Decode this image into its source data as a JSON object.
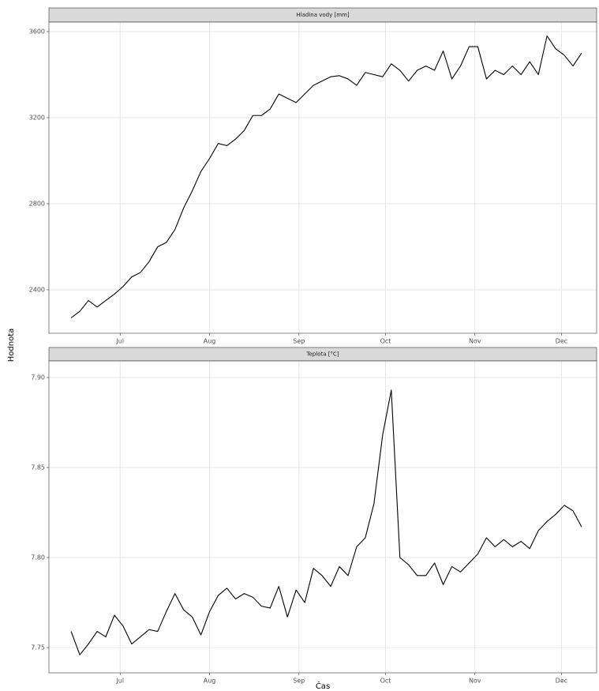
{
  "axis_titles": {
    "x": "Čas",
    "y": "Hodnota"
  },
  "chart_data": [
    {
      "type": "line",
      "title": "Hladina vody [mm]",
      "color": "#000000",
      "grid": true,
      "x": [
        165,
        168,
        171,
        174,
        177,
        180,
        183,
        186,
        189,
        192,
        195,
        198,
        201,
        204,
        207,
        210,
        213,
        216,
        219,
        222,
        225,
        228,
        231,
        234,
        237,
        240,
        243,
        246,
        249,
        252,
        255,
        258,
        261,
        264,
        267,
        270,
        273,
        276,
        279,
        282,
        285,
        288,
        291,
        294,
        297,
        300,
        303,
        306,
        309,
        312,
        315,
        318,
        321,
        324,
        327,
        330,
        333,
        336,
        339,
        342
      ],
      "values": [
        2270,
        2300,
        2350,
        2320,
        2350,
        2380,
        2415,
        2460,
        2480,
        2530,
        2600,
        2620,
        2680,
        2780,
        2860,
        2950,
        3010,
        3080,
        3070,
        3100,
        3140,
        3210,
        3210,
        3240,
        3310,
        3290,
        3270,
        3310,
        3350,
        3370,
        3390,
        3395,
        3380,
        3350,
        3410,
        3400,
        3390,
        3450,
        3420,
        3370,
        3420,
        3440,
        3420,
        3510,
        3380,
        3440,
        3530,
        3530,
        3380,
        3420,
        3400,
        3440,
        3400,
        3460,
        3400,
        3580,
        3520,
        3490,
        3440,
        3500
      ],
      "xlim": [
        157.3,
        347.2
      ],
      "xticks": [
        {
          "value": 182,
          "label": "Jul"
        },
        {
          "value": 213,
          "label": "Aug"
        },
        {
          "value": 244,
          "label": "Sep"
        },
        {
          "value": 274,
          "label": "Oct"
        },
        {
          "value": 305,
          "label": "Nov"
        },
        {
          "value": 335,
          "label": "Dec"
        }
      ],
      "ylim": [
        2198,
        3644
      ],
      "yticks": [
        2400,
        2800,
        3200,
        3600
      ]
    },
    {
      "type": "line",
      "title": "Teplota [°C]",
      "color": "#000000",
      "grid": true,
      "x": [
        165,
        168,
        171,
        174,
        177,
        180,
        183,
        186,
        189,
        192,
        195,
        198,
        201,
        204,
        207,
        210,
        213,
        216,
        219,
        222,
        225,
        228,
        231,
        234,
        237,
        240,
        243,
        246,
        249,
        252,
        255,
        258,
        261,
        264,
        267,
        270,
        273,
        276,
        279,
        282,
        285,
        288,
        291,
        294,
        297,
        300,
        303,
        306,
        309,
        312,
        315,
        318,
        321,
        324,
        327,
        330,
        333,
        336,
        339,
        342
      ],
      "values": [
        7.759,
        7.746,
        7.752,
        7.759,
        7.756,
        7.768,
        7.762,
        7.752,
        7.756,
        7.76,
        7.759,
        7.77,
        7.78,
        7.771,
        7.767,
        7.757,
        7.77,
        7.779,
        7.783,
        7.777,
        7.78,
        7.778,
        7.773,
        7.772,
        7.784,
        7.767,
        7.782,
        7.775,
        7.794,
        7.79,
        7.784,
        7.795,
        7.79,
        7.806,
        7.811,
        7.83,
        7.868,
        7.893,
        7.8,
        7.796,
        7.79,
        7.79,
        7.797,
        7.785,
        7.795,
        7.792,
        7.797,
        7.802,
        7.811,
        7.806,
        7.81,
        7.806,
        7.809,
        7.805,
        7.815,
        7.82,
        7.824,
        7.829,
        7.826,
        7.817
      ],
      "xlim": [
        157.3,
        347.2
      ],
      "xticks": [
        {
          "value": 182,
          "label": "Jul"
        },
        {
          "value": 213,
          "label": "Aug"
        },
        {
          "value": 244,
          "label": "Sep"
        },
        {
          "value": 274,
          "label": "Oct"
        },
        {
          "value": 305,
          "label": "Nov"
        },
        {
          "value": 335,
          "label": "Dec"
        }
      ],
      "ylim": [
        7.736,
        7.9092
      ],
      "yticks": [
        {
          "value": 7.75,
          "label": "7.75"
        },
        {
          "value": 7.8,
          "label": "7.80"
        },
        {
          "value": 7.85,
          "label": "7.85"
        },
        {
          "value": 7.9,
          "label": "7.90"
        }
      ]
    }
  ]
}
